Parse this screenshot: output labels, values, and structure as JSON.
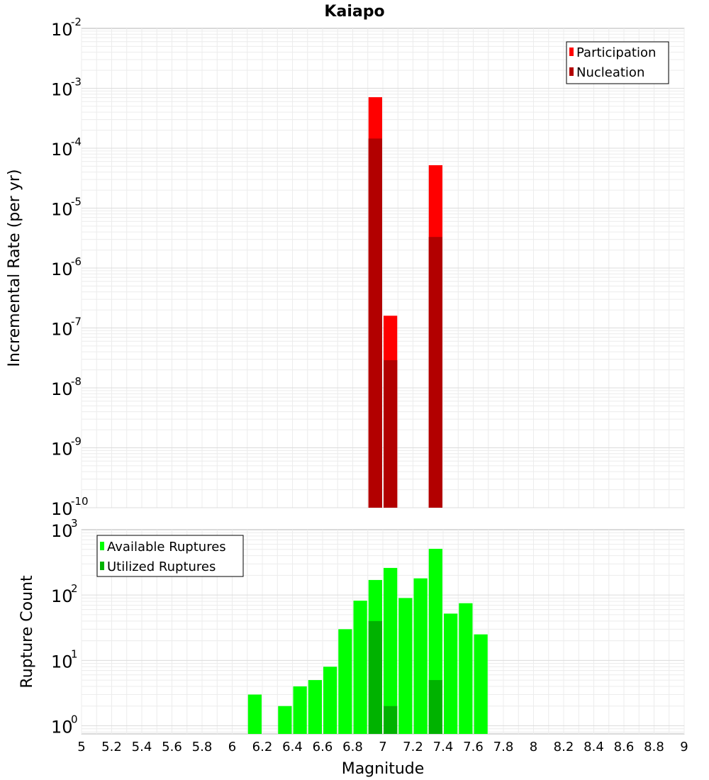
{
  "chart_data": [
    {
      "type": "bar",
      "title": "Kaiapo",
      "ylabel": "Incremental Rate (per yr)",
      "xlabel": "",
      "x_scale": "linear",
      "y_scale": "log",
      "xlim": [
        5,
        9
      ],
      "ylim": [
        1e-10,
        0.01
      ],
      "bin_width": 0.1,
      "grid": true,
      "legend_position": "top-right",
      "y_ticks": [
        {
          "base": "10",
          "exp": "-10",
          "value": 1e-10
        },
        {
          "base": "10",
          "exp": "-9",
          "value": 1e-09
        },
        {
          "base": "10",
          "exp": "-8",
          "value": 1e-08
        },
        {
          "base": "10",
          "exp": "-7",
          "value": 1e-07
        },
        {
          "base": "10",
          "exp": "-6",
          "value": 1e-06
        },
        {
          "base": "10",
          "exp": "-5",
          "value": 1e-05
        },
        {
          "base": "10",
          "exp": "-4",
          "value": 0.0001
        },
        {
          "base": "10",
          "exp": "-3",
          "value": 0.001
        },
        {
          "base": "10",
          "exp": "-2",
          "value": 0.01
        }
      ],
      "series": [
        {
          "name": "Participation",
          "color": "#ff0000",
          "points": [
            {
              "x": 6.95,
              "y": 0.00071
            },
            {
              "x": 7.05,
              "y": 1.6e-07
            },
            {
              "x": 7.35,
              "y": 5.2e-05
            }
          ]
        },
        {
          "name": "Nucleation",
          "color": "#b20000",
          "points": [
            {
              "x": 6.95,
              "y": 0.000145
            },
            {
              "x": 7.05,
              "y": 2.9e-08
            },
            {
              "x": 7.35,
              "y": 3.3e-06
            }
          ]
        }
      ]
    },
    {
      "type": "bar",
      "title": "",
      "ylabel": "Rupture Count",
      "xlabel": "Magnitude",
      "x_scale": "linear",
      "y_scale": "log",
      "xlim": [
        5,
        9
      ],
      "ylim": [
        0.75,
        1000
      ],
      "bin_width": 0.1,
      "grid": true,
      "legend_position": "top-left",
      "x_ticks": [
        "5",
        "5.2",
        "5.4",
        "5.6",
        "5.8",
        "6",
        "6.2",
        "6.4",
        "6.6",
        "6.8",
        "7",
        "7.2",
        "7.4",
        "7.6",
        "7.8",
        "8",
        "8.2",
        "8.4",
        "8.6",
        "8.8",
        "9"
      ],
      "y_ticks": [
        {
          "base": "10",
          "exp": "0",
          "value": 1
        },
        {
          "base": "10",
          "exp": "1",
          "value": 10
        },
        {
          "base": "10",
          "exp": "2",
          "value": 100
        },
        {
          "base": "10",
          "exp": "3",
          "value": 1000
        }
      ],
      "series": [
        {
          "name": "Available Ruptures",
          "color": "#00ff00",
          "points": [
            {
              "x": 6.15,
              "y": 3
            },
            {
              "x": 6.35,
              "y": 2
            },
            {
              "x": 6.45,
              "y": 4
            },
            {
              "x": 6.55,
              "y": 5
            },
            {
              "x": 6.65,
              "y": 8
            },
            {
              "x": 6.75,
              "y": 30
            },
            {
              "x": 6.85,
              "y": 82
            },
            {
              "x": 6.95,
              "y": 170
            },
            {
              "x": 7.05,
              "y": 260
            },
            {
              "x": 7.15,
              "y": 90
            },
            {
              "x": 7.25,
              "y": 180
            },
            {
              "x": 7.35,
              "y": 510
            },
            {
              "x": 7.45,
              "y": 52
            },
            {
              "x": 7.55,
              "y": 75
            },
            {
              "x": 7.65,
              "y": 25
            }
          ]
        },
        {
          "name": "Utilized Ruptures",
          "color": "#00b200",
          "points": [
            {
              "x": 6.95,
              "y": 40
            },
            {
              "x": 7.05,
              "y": 2
            },
            {
              "x": 7.35,
              "y": 5
            }
          ]
        }
      ]
    }
  ]
}
